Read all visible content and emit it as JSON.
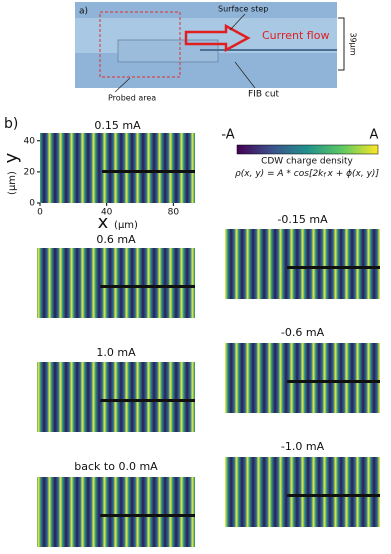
{
  "panel_a": {
    "label": "a)",
    "surface_step": "Surface step",
    "current_flow": "Current flow",
    "scale": "39µm",
    "probed_area": "Probed area",
    "fib_cut": "FIB cut"
  },
  "panel_b": {
    "label": "b)",
    "axes": {
      "y_label": "y",
      "y_unit": "(µm)",
      "x_label": "x",
      "x_unit": "(µm)",
      "xlim": [
        0,
        93
      ],
      "ylim": [
        0,
        45
      ],
      "xticks": [
        0,
        40,
        80
      ],
      "yticks": [
        0,
        20,
        40
      ]
    },
    "colorbar": {
      "min_label": "-A",
      "max_label": "A",
      "title": "CDW charge density",
      "formula": [
        "ρ(x, y) = A * cos[2k",
        "f",
        "x + ϕ(x, y)]"
      ]
    },
    "maps": [
      {
        "label": "0.15 mA"
      },
      {
        "label": "0.6 mA"
      },
      {
        "label": "1.0 mA"
      },
      {
        "label": "back to 0.0 mA"
      },
      {
        "label": "-0.15 mA"
      },
      {
        "label": "-0.6 mA"
      },
      {
        "label": "-1.0 mA"
      }
    ]
  }
}
